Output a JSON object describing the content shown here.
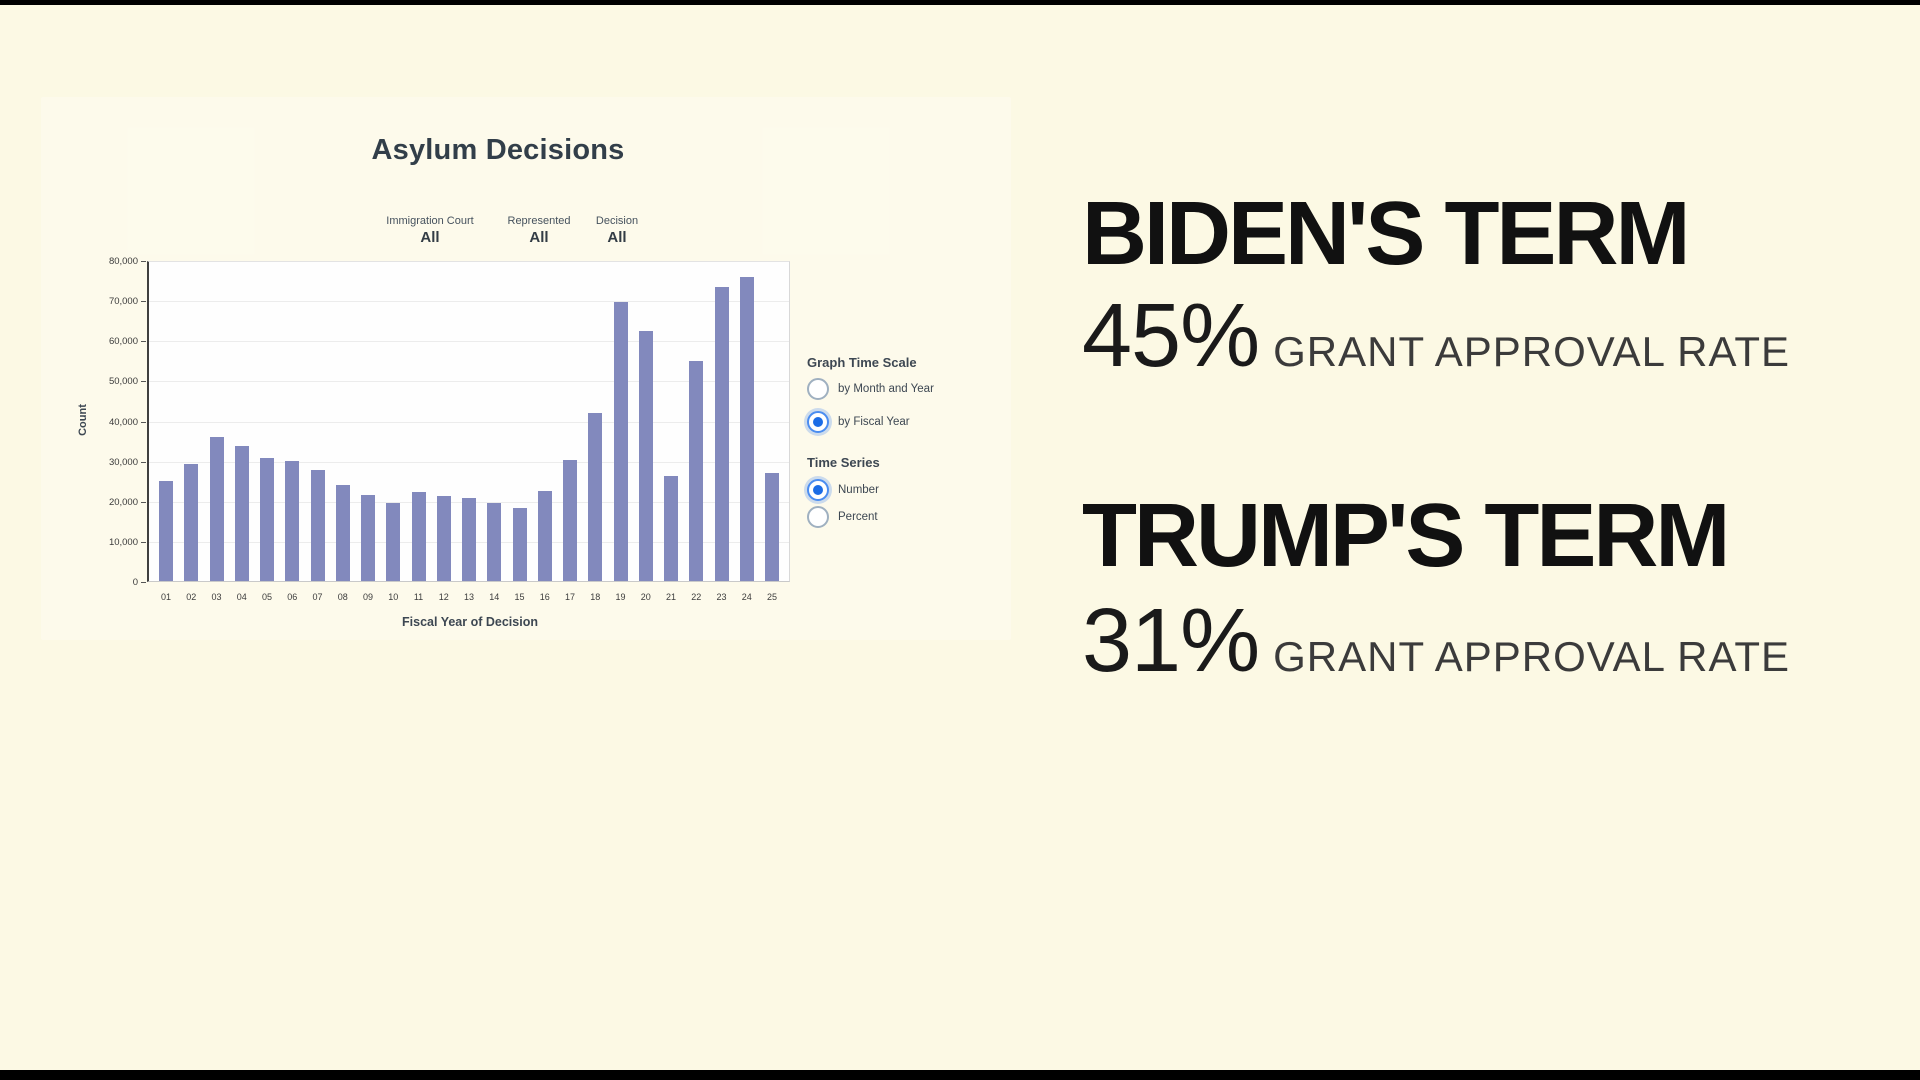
{
  "colors": {
    "background": "#FCF9E4",
    "bar": "#8289BD",
    "radio_selected_blue": "#1B6CE6",
    "chart_text_slate": "#3D4752",
    "heading_text": "#111111",
    "caption_text": "#3B3B3B"
  },
  "chart": {
    "filters": [
      {
        "label": "Immigration Court",
        "value": "All"
      },
      {
        "label": "Represented",
        "value": "All"
      },
      {
        "label": "Decision",
        "value": "All"
      }
    ],
    "control_groups": [
      {
        "label": "Graph Time Scale",
        "options": [
          {
            "label": "by Month and Year",
            "selected": false
          },
          {
            "label": "by Fiscal Year",
            "selected": true
          }
        ]
      },
      {
        "label": "Time Series",
        "options": [
          {
            "label": "Number",
            "selected": true
          },
          {
            "label": "Percent",
            "selected": false
          }
        ]
      }
    ]
  },
  "chart_data": {
    "type": "bar",
    "title": "Asylum Decisions",
    "xlabel": "Fiscal Year of Decision",
    "ylabel": "Count",
    "categories": [
      "01",
      "02",
      "03",
      "04",
      "05",
      "06",
      "07",
      "08",
      "09",
      "10",
      "11",
      "12",
      "13",
      "14",
      "15",
      "16",
      "17",
      "18",
      "19",
      "20",
      "21",
      "22",
      "23",
      "24",
      "25"
    ],
    "values": [
      25000,
      29300,
      35900,
      33800,
      30700,
      29900,
      27800,
      23900,
      21600,
      19400,
      22300,
      21200,
      20800,
      19600,
      18300,
      22400,
      30300,
      42100,
      69700,
      62500,
      26200,
      54900,
      73500,
      76100,
      27100
    ],
    "ylim": [
      0,
      80000
    ],
    "y_ticks": [
      0,
      10000,
      20000,
      30000,
      40000,
      50000,
      60000,
      70000,
      80000
    ],
    "y_tick_labels": [
      "0",
      "10,000",
      "20,000",
      "30,000",
      "40,000",
      "50,000",
      "60,000",
      "70,000",
      "80,000"
    ],
    "grid": true,
    "legend": "none",
    "bar_color": "#8289BD"
  },
  "stats": [
    {
      "heading": "BIDEN'S TERM",
      "value": "45%",
      "caption": "GRANT APPROVAL RATE"
    },
    {
      "heading": "TRUMP'S TERM",
      "value": "31%",
      "caption": "GRANT APPROVAL RATE"
    }
  ]
}
